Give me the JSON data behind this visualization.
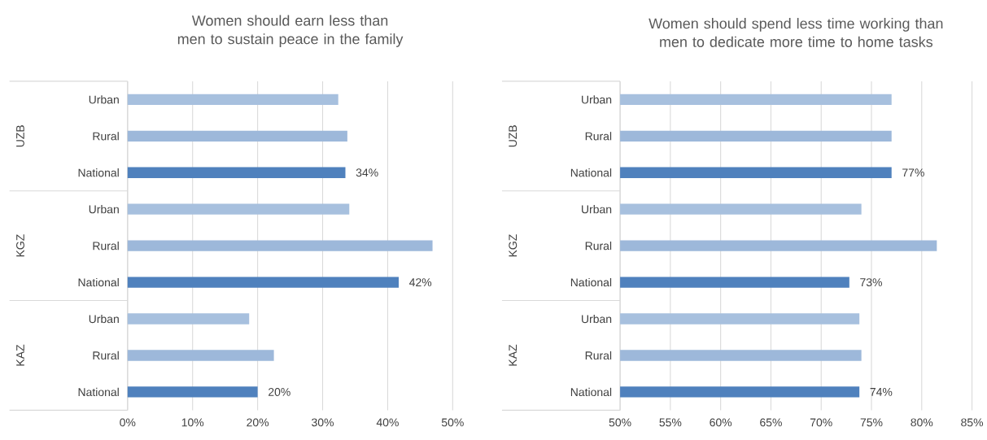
{
  "chart_data": [
    {
      "type": "bar",
      "orientation": "horizontal",
      "title": "Women should earn less than men to sustain peace in the family",
      "categories": [
        "Urban",
        "Rural",
        "National",
        "Urban",
        "Rural",
        "National",
        "Urban",
        "Rural",
        "National"
      ],
      "values": [
        32.4,
        33.8,
        33.5,
        34.1,
        46.9,
        41.7,
        18.7,
        22.5,
        20.0
      ],
      "value_labels": [
        null,
        null,
        "34%",
        null,
        null,
        "42%",
        null,
        null,
        "20%"
      ],
      "colors": [
        "#a7c0de",
        "#9db8da",
        "#4f81bd",
        "#a7c0de",
        "#9db8da",
        "#4f81bd",
        "#a7c0de",
        "#9db8da",
        "#4f81bd"
      ],
      "annotations": [
        "UZB",
        "KGZ",
        "KAZ"
      ],
      "xlim": [
        0,
        50
      ],
      "xticks": [
        {
          "value": 0,
          "label": "0%"
        },
        {
          "value": 10,
          "label": "10%"
        },
        {
          "value": 20,
          "label": "20%"
        },
        {
          "value": 30,
          "label": "30%"
        },
        {
          "value": 40,
          "label": "40%"
        },
        {
          "value": 50,
          "label": "50%"
        }
      ],
      "grid": "x"
    },
    {
      "type": "bar",
      "orientation": "horizontal",
      "title": "Women should spend less time working than men to dedicate more time to home tasks",
      "categories": [
        "Urban",
        "Rural",
        "National",
        "Urban",
        "Rural",
        "National",
        "Urban",
        "Rural",
        "National"
      ],
      "values": [
        77.0,
        77.0,
        77.0,
        74.0,
        81.5,
        72.8,
        73.8,
        74.0,
        73.8
      ],
      "value_labels": [
        null,
        null,
        "77%",
        null,
        null,
        "73%",
        null,
        null,
        "74%"
      ],
      "colors": [
        "#a7c0de",
        "#9db8da",
        "#4f81bd",
        "#a7c0de",
        "#9db8da",
        "#4f81bd",
        "#a7c0de",
        "#9db8da",
        "#4f81bd"
      ],
      "annotations": [
        "UZB",
        "KGZ",
        "KAZ"
      ],
      "xlim": [
        50,
        85
      ],
      "xticks": [
        {
          "value": 50,
          "label": "50%"
        },
        {
          "value": 55,
          "label": "55%"
        },
        {
          "value": 60,
          "label": "60%"
        },
        {
          "value": 65,
          "label": "65%"
        },
        {
          "value": 70,
          "label": "70%"
        },
        {
          "value": 75,
          "label": "75%"
        },
        {
          "value": 80,
          "label": "80%"
        },
        {
          "value": 85,
          "label": "85%"
        }
      ],
      "grid": "x"
    }
  ]
}
